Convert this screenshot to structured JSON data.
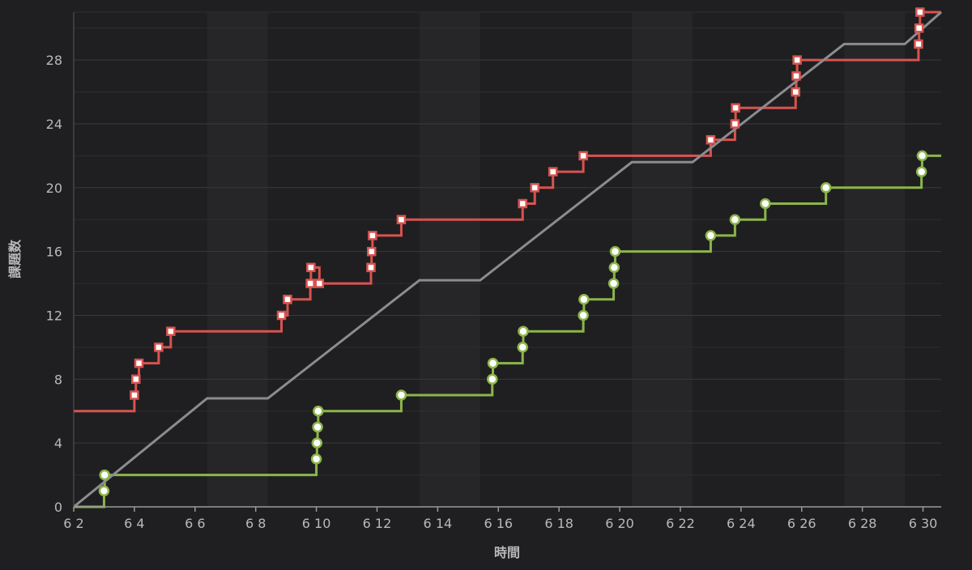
{
  "chart_data": {
    "type": "line",
    "xlabel": "時間",
    "ylabel": "課題数",
    "x_range": [
      2,
      30.6
    ],
    "ylim": [
      0,
      31
    ],
    "y_ticks": [
      0,
      4,
      8,
      12,
      16,
      20,
      24,
      28
    ],
    "x_ticks": [
      {
        "v": 2,
        "label": "6 2"
      },
      {
        "v": 4,
        "label": "6 4"
      },
      {
        "v": 6,
        "label": "6 6"
      },
      {
        "v": 8,
        "label": "6 8"
      },
      {
        "v": 10,
        "label": "6 10"
      },
      {
        "v": 12,
        "label": "6 12"
      },
      {
        "v": 14,
        "label": "6 14"
      },
      {
        "v": 16,
        "label": "6 16"
      },
      {
        "v": 18,
        "label": "6 18"
      },
      {
        "v": 20,
        "label": "6 20"
      },
      {
        "v": 22,
        "label": "6 22"
      },
      {
        "v": 24,
        "label": "6 24"
      },
      {
        "v": 26,
        "label": "6 26"
      },
      {
        "v": 28,
        "label": "6 28"
      },
      {
        "v": 30,
        "label": "6 30"
      }
    ],
    "weekend_bands": [
      [
        6.4,
        8.4
      ],
      [
        13.4,
        15.4
      ],
      [
        20.4,
        22.4
      ],
      [
        27.4,
        29.4
      ]
    ],
    "grid": true,
    "colors": {
      "red": "#d9534f",
      "green": "#8cb54a",
      "gray": "#8c8c90",
      "background": "#1f1f21",
      "band": "#262628",
      "grid": "#3a3a3d"
    },
    "series": [
      {
        "color": "#d9534f",
        "step": true,
        "marker": "square",
        "points": [
          [
            2.0,
            6
          ],
          [
            4.0,
            7
          ],
          [
            4.05,
            8
          ],
          [
            4.15,
            9
          ],
          [
            4.8,
            10
          ],
          [
            5.2,
            11
          ],
          [
            8.85,
            12
          ],
          [
            9.05,
            13
          ],
          [
            9.8,
            14
          ],
          [
            9.82,
            15
          ],
          [
            10.1,
            14
          ],
          [
            11.8,
            15
          ],
          [
            11.82,
            16
          ],
          [
            11.85,
            17
          ],
          [
            12.8,
            18
          ],
          [
            16.8,
            19
          ],
          [
            17.2,
            20
          ],
          [
            17.8,
            21
          ],
          [
            18.8,
            22
          ],
          [
            23.0,
            23
          ],
          [
            23.8,
            24
          ],
          [
            23.82,
            25
          ],
          [
            25.8,
            26
          ],
          [
            25.82,
            27
          ],
          [
            25.85,
            28
          ],
          [
            29.85,
            29
          ],
          [
            29.87,
            30
          ],
          [
            29.9,
            31
          ],
          [
            30.6,
            31
          ]
        ],
        "markers_at": [
          1,
          2,
          3,
          4,
          5,
          6,
          7,
          8,
          9,
          10,
          11,
          12,
          13,
          14,
          15,
          16,
          17,
          18,
          19,
          20,
          21,
          22,
          23,
          24,
          25,
          26,
          27
        ]
      },
      {
        "color": "#8cb54a",
        "step": true,
        "marker": "circle",
        "points": [
          [
            2.0,
            0
          ],
          [
            3.0,
            1
          ],
          [
            3.02,
            2
          ],
          [
            10.0,
            3
          ],
          [
            10.02,
            4
          ],
          [
            10.04,
            5
          ],
          [
            10.06,
            6
          ],
          [
            12.8,
            7
          ],
          [
            15.8,
            8
          ],
          [
            15.82,
            9
          ],
          [
            16.8,
            10
          ],
          [
            16.82,
            11
          ],
          [
            18.8,
            12
          ],
          [
            18.82,
            13
          ],
          [
            19.8,
            14
          ],
          [
            19.82,
            15
          ],
          [
            19.85,
            16
          ],
          [
            23.0,
            17
          ],
          [
            23.8,
            18
          ],
          [
            24.8,
            19
          ],
          [
            26.8,
            20
          ],
          [
            29.95,
            21
          ],
          [
            29.97,
            22
          ],
          [
            30.6,
            22
          ]
        ],
        "markers_at": [
          1,
          2,
          3,
          4,
          5,
          6,
          7,
          8,
          9,
          10,
          11,
          12,
          13,
          14,
          15,
          16,
          17,
          18,
          19,
          20,
          21,
          22
        ]
      },
      {
        "color": "#8c8c90",
        "step": false,
        "marker": "none",
        "points": [
          [
            2.0,
            0
          ],
          [
            6.4,
            6.8
          ],
          [
            8.4,
            6.8
          ],
          [
            13.4,
            14.2
          ],
          [
            15.4,
            14.2
          ],
          [
            20.4,
            21.6
          ],
          [
            22.4,
            21.6
          ],
          [
            27.4,
            29.0
          ],
          [
            29.4,
            29.0
          ],
          [
            30.6,
            31
          ]
        ],
        "markers_at": []
      }
    ]
  }
}
